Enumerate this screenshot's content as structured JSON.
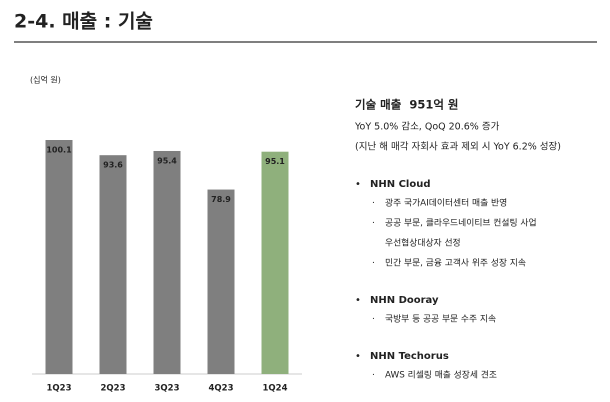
{
  "header": {
    "title": "2-4. 매출 : 기술"
  },
  "chart_data": {
    "type": "bar",
    "y_label": "(십억 원)",
    "categories": [
      "1Q23",
      "2Q23",
      "3Q23",
      "4Q23",
      "1Q24"
    ],
    "values": [
      100.1,
      93.6,
      95.4,
      78.9,
      95.1
    ],
    "colors": [
      "#7f7f7f",
      "#7f7f7f",
      "#7f7f7f",
      "#7f7f7f",
      "#8fb07c"
    ]
  },
  "summary": {
    "headline": "기술 매출  951억 원",
    "lines": [
      "YoY 5.0% 감소, QoQ 20.6% 증가",
      "(지난 해 매각 자회사 효과 제외 시 YoY 6.2% 성장)"
    ]
  },
  "sections": [
    {
      "title": "NHN Cloud",
      "items": [
        [
          "광주 국가AI데이터센터 매출 반영"
        ],
        [
          "공공 부문, 클라우드네이티브 컨설팅 사업",
          "우선협상대상자 선정"
        ],
        [
          "민간 부문, 금융 고객사 위주 성장 지속"
        ]
      ]
    },
    {
      "title": "NHN Dooray",
      "items": [
        [
          "국방부 등 공공 부문 수주 지속"
        ]
      ]
    },
    {
      "title": "NHN Techorus",
      "items": [
        [
          "AWS 리셀링 매출 성장세 견조"
        ]
      ]
    }
  ]
}
